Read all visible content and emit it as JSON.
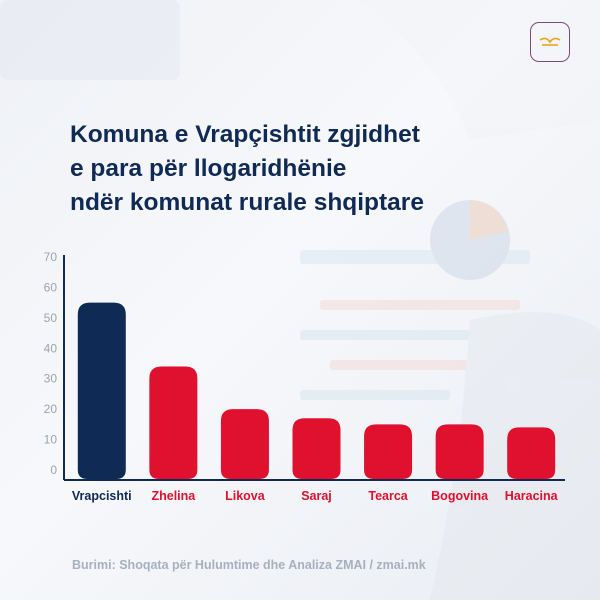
{
  "title_lines": [
    "Komuna e Vrapçishtit zgjidhet",
    "e para për llogaridhënie",
    "ndër komunat rurale shqiptare"
  ],
  "source": "Burimi: Shoqata për Hulumtime dhe Analiza ZMAI / zmai.mk",
  "colors": {
    "title": "#102a56",
    "highlight_bar": "#102a56",
    "bar": "#e0102f",
    "label_highlight": "#102a56",
    "label": "#e0102f",
    "axis": "#102a56",
    "tick": "#9aa3b2"
  },
  "logo": {
    "icon": "zmai-logo-icon"
  },
  "chart_data": {
    "type": "bar",
    "categories": [
      "Vrapcishti",
      "Zhelina",
      "Likova",
      "Saraj",
      "Tearca",
      "Bogovina",
      "Haracina"
    ],
    "values": [
      55,
      34,
      20,
      17,
      15,
      15,
      14
    ],
    "highlight_index": 0,
    "ylim": [
      0,
      70
    ],
    "yticks": [
      0,
      10,
      20,
      30,
      40,
      50,
      60,
      70
    ],
    "title": "",
    "xlabel": "",
    "ylabel": "",
    "grid": false,
    "legend": "none"
  }
}
